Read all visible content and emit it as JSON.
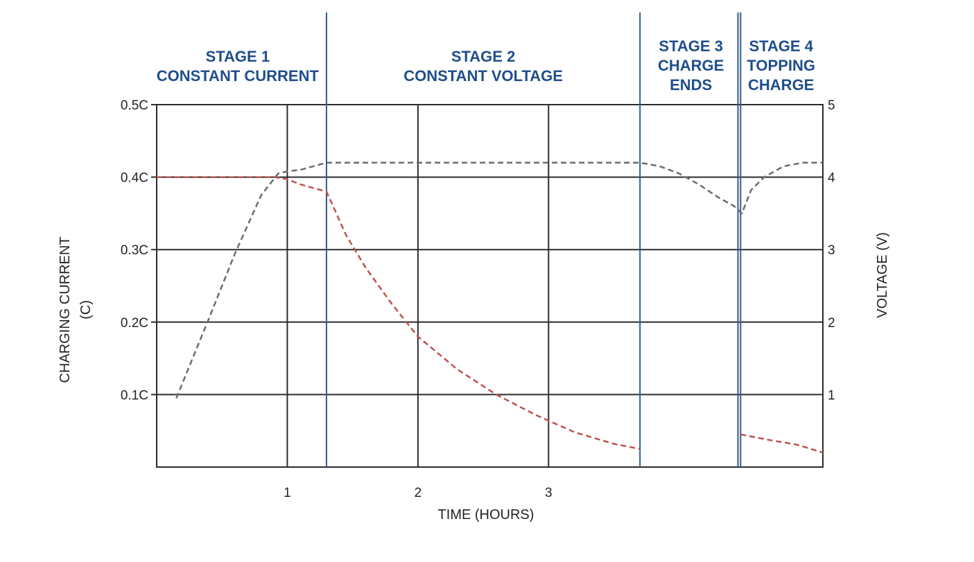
{
  "chart_data": {
    "type": "line",
    "title": "",
    "xlabel": "TIME (HOURS)",
    "ylabel_left": [
      "CHARGING CURRENT",
      "(C)"
    ],
    "ylabel_right": "VOLTAGE (V)",
    "xlim": [
      0,
      5.1
    ],
    "ylim_left": [
      0,
      0.5
    ],
    "ylim_right": [
      0,
      5
    ],
    "x_ticks": [
      {
        "value": 1,
        "label": "1"
      },
      {
        "value": 2,
        "label": "2"
      },
      {
        "value": 3,
        "label": "3"
      }
    ],
    "y_ticks_left": [
      {
        "value": 0.1,
        "label": "0.1C"
      },
      {
        "value": 0.2,
        "label": "0.2C"
      },
      {
        "value": 0.3,
        "label": "0.3C"
      },
      {
        "value": 0.4,
        "label": "0.4C"
      },
      {
        "value": 0.5,
        "label": "0.5C"
      }
    ],
    "y_ticks_right": [
      {
        "value": 1,
        "label": "1"
      },
      {
        "value": 2,
        "label": "2"
      },
      {
        "value": 3,
        "label": "3"
      },
      {
        "value": 4,
        "label": "4"
      },
      {
        "value": 5,
        "label": "5"
      }
    ],
    "grid": true,
    "stage_boundaries": [
      1.3,
      3.7,
      4.45,
      4.47
    ],
    "stages": [
      {
        "lines": [
          "STAGE 1",
          "CONSTANT CURRENT"
        ],
        "x": 0.62
      },
      {
        "lines": [
          "STAGE 2",
          "CONSTANT VOLTAGE"
        ],
        "x": 2.5
      },
      {
        "lines": [
          "STAGE 3",
          "CHARGE",
          "ENDS"
        ],
        "x": 4.09
      },
      {
        "lines": [
          "STAGE 4",
          "TOPPING",
          "CHARGE"
        ],
        "x": 4.78
      }
    ],
    "series": [
      {
        "axis": "right",
        "color": "#6b6b6b",
        "x": [
          0.15,
          0.4,
          0.6,
          0.8,
          0.93,
          1.0,
          1.1,
          1.2,
          1.3,
          1.6,
          2.0,
          2.5,
          3.0,
          3.5,
          3.7,
          3.85,
          4.0,
          4.15,
          4.3,
          4.42,
          4.45,
          4.48,
          4.55,
          4.65,
          4.8,
          4.95,
          5.1
        ],
        "values": [
          0.95,
          2.05,
          2.95,
          3.75,
          4.05,
          4.08,
          4.1,
          4.15,
          4.2,
          4.2,
          4.2,
          4.2,
          4.2,
          4.2,
          4.2,
          4.15,
          4.05,
          3.9,
          3.72,
          3.6,
          3.55,
          3.5,
          3.82,
          4.0,
          4.15,
          4.2,
          4.2
        ]
      },
      {
        "axis": "left",
        "color": "#c0504d",
        "segments": [
          {
            "x": [
              0,
              0.5,
              0.9,
              1.0,
              1.1,
              1.2,
              1.3,
              1.45,
              1.6,
              1.8,
              2.0,
              2.3,
              2.6,
              2.9,
              3.2,
              3.5,
              3.7
            ],
            "values": [
              0.4,
              0.4,
              0.4,
              0.397,
              0.39,
              0.385,
              0.38,
              0.32,
              0.275,
              0.225,
              0.18,
              0.135,
              0.1,
              0.072,
              0.048,
              0.032,
              0.025
            ]
          },
          {
            "x": [
              4.47,
              4.7,
              4.9,
              5.1
            ],
            "values": [
              0.045,
              0.037,
              0.031,
              0.02
            ]
          }
        ]
      }
    ]
  }
}
